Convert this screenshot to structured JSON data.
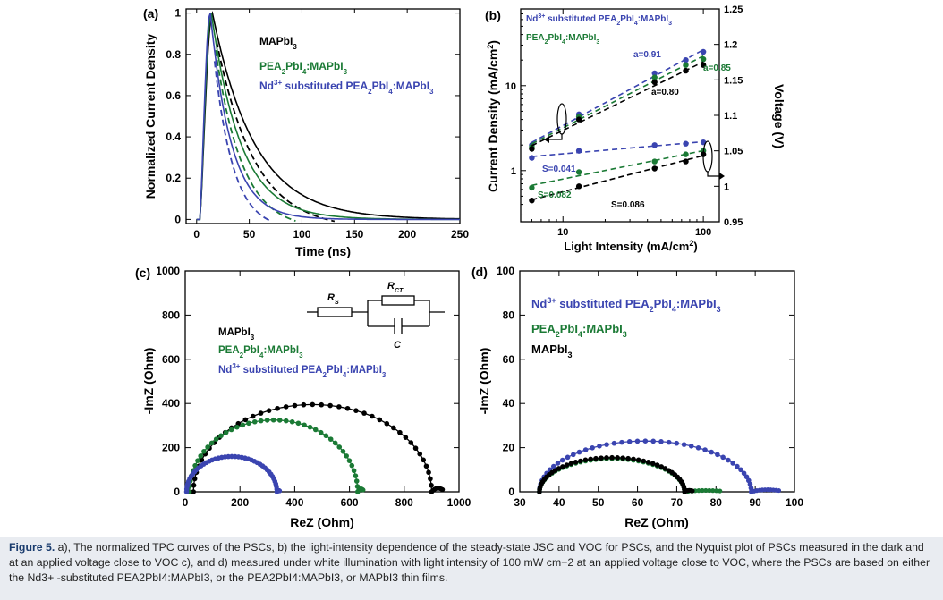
{
  "chart_data": [
    {
      "panel": "(a)",
      "type": "line",
      "xlabel": "Time (ns)",
      "ylabel": "Normalized Current Density",
      "xlim": [
        -10,
        250
      ],
      "ylim": [
        -0.02,
        1.02
      ],
      "xticks": [
        "0",
        "50",
        "100",
        "150",
        "200",
        "250"
      ],
      "yticks": [
        "0",
        "0.2",
        "0.4",
        "0.6",
        "0.8",
        "1"
      ],
      "series": [
        {
          "name": "MAPbI3",
          "color": "#000000",
          "peak_x": 15,
          "tau": 40,
          "rise": 6
        },
        {
          "name": "PEA2PbI4:MAPbI3",
          "color": "#1b7a35",
          "peak_x": 14,
          "tau": 28,
          "rise": 6
        },
        {
          "name": "Nd3+ substituted PEA2PbI4:MAPbI3",
          "color": "#3a44b0",
          "peak_x": 13,
          "tau": 20,
          "rise": 6
        }
      ],
      "legend": [
        "MAPbI3",
        "PEA2PbI4:MAPbI3",
        "Nd3+ substituted PEA2PbI4:MAPbI3"
      ]
    },
    {
      "panel": "(b)",
      "type": "scatter",
      "xlabel": "Light Intensity (mA/cm2)",
      "ylabel": "Current Density (mA/cm2)",
      "y2label": "Voltage (V)",
      "xscale": "log",
      "yscale": "log",
      "xlim": [
        5,
        130
      ],
      "ylim": [
        0.25,
        80
      ],
      "y2lim": [
        0.95,
        1.25
      ],
      "xticks": [
        "10",
        "100"
      ],
      "yticks": [
        "1",
        "10"
      ],
      "y2ticks": [
        "0.95",
        "1",
        "1.05",
        "1.1",
        "1.15",
        "1.2",
        "1.25"
      ],
      "x": [
        6,
        13,
        45,
        75,
        100
      ],
      "jsc_series": [
        {
          "name": "Nd3+ substituted PEA2PbI4:MAPbI3",
          "color": "#3a44b0",
          "values": [
            2.0,
            4.6,
            14,
            20,
            25
          ]
        },
        {
          "name": "PEA2PbI4:MAPbI3",
          "color": "#1b7a35",
          "values": [
            1.9,
            4.3,
            12.5,
            17.5,
            20.5
          ]
        },
        {
          "name": "MAPbI3",
          "color": "#000000",
          "values": [
            1.8,
            4.0,
            11,
            15,
            17.5
          ]
        }
      ],
      "voc_series": [
        {
          "name": "Nd3+ substituted PEA2PbI4:MAPbI3",
          "color": "#3a44b0",
          "values": [
            1.04,
            1.05,
            1.058,
            1.06,
            1.062
          ]
        },
        {
          "name": "PEA2PbI4:MAPbI3",
          "color": "#1b7a35",
          "values": [
            0.998,
            1.02,
            1.035,
            1.045,
            1.05
          ]
        },
        {
          "name": "MAPbI3",
          "color": "#000000",
          "values": [
            0.98,
            1.0,
            1.025,
            1.035,
            1.045
          ]
        }
      ],
      "annotations": [
        {
          "text": "a=0.91",
          "color": "#3a44b0"
        },
        {
          "text": "a=0.85",
          "color": "#1b7a35"
        },
        {
          "text": "a=0.80",
          "color": "#000000"
        },
        {
          "text": "S=0.041",
          "color": "#3a44b0"
        },
        {
          "text": "S=0.082",
          "color": "#1b7a35"
        },
        {
          "text": "S=0.086",
          "color": "#000000"
        }
      ],
      "legend": [
        "Nd3+ substituted PEA2PbI4:MAPbI3",
        "PEA2PbI4:MAPbI3"
      ]
    },
    {
      "panel": "(c)",
      "type": "scatter",
      "xlabel": "ReZ (Ohm)",
      "ylabel": "-ImZ (Ohm)",
      "xlim": [
        0,
        1000
      ],
      "ylim": [
        0,
        1000
      ],
      "xticks": [
        "0",
        "200",
        "400",
        "600",
        "800",
        "1000"
      ],
      "yticks": [
        "0",
        "200",
        "400",
        "600",
        "800",
        "1000"
      ],
      "series": [
        {
          "name": "MAPbI3",
          "color": "#000000",
          "x0": 30,
          "x1": 900,
          "height": 395,
          "tail_x": 940
        },
        {
          "name": "PEA2PbI4:MAPbI3",
          "color": "#1b7a35",
          "x0": 15,
          "x1": 630,
          "height": 325,
          "tail_x": 650
        },
        {
          "name": "Nd3+ substituted PEA2PbI4:MAPbI3",
          "color": "#3a44b0",
          "x0": 5,
          "x1": 335,
          "height": 160,
          "tail_x": 345
        }
      ],
      "legend": [
        "MAPbI3",
        "PEA2PbI4:MAPbI3",
        "Nd3+ substituted PEA2PbI4:MAPbI3"
      ],
      "circuit": {
        "r_s": "R",
        "r_s_sub": "S",
        "r_ct": "R",
        "r_ct_sub": "CT",
        "c": "C"
      }
    },
    {
      "panel": "(d)",
      "type": "scatter",
      "xlabel": "ReZ (Ohm)",
      "ylabel": "-ImZ (Ohm)",
      "xlim": [
        30,
        100
      ],
      "ylim": [
        0,
        100
      ],
      "xticks": [
        "30",
        "40",
        "50",
        "60",
        "70",
        "80",
        "90",
        "100"
      ],
      "yticks": [
        "0",
        "20",
        "40",
        "60",
        "80",
        "100"
      ],
      "series": [
        {
          "name": "Nd3+ substituted PEA2PbI4:MAPbI3",
          "color": "#3a44b0",
          "x0": 35,
          "x1": 89,
          "height": 23,
          "tail_x": 96
        },
        {
          "name": "PEA2PbI4:MAPbI3",
          "color": "#1b7a35",
          "x0": 35,
          "x1": 72,
          "height": 15,
          "tail_x": 81
        },
        {
          "name": "MAPbI3",
          "color": "#000000",
          "x0": 35,
          "x1": 72,
          "height": 15.5,
          "tail_x": 74
        }
      ],
      "legend": [
        "Nd3+ substituted PEA2PbI4:MAPbI3",
        "PEA2PbI4:MAPbI3",
        "MAPbI3"
      ]
    }
  ],
  "caption": {
    "label": "Figure 5.",
    "text": "a), The normalized TPC curves of the PSCs, b) the light-intensity dependence of the steady-state JSC and VOC for PSCs, and the Nyquist plot of PSCs measured in the dark and at an applied voltage close to VOC c), and d) measured under white illumination with light intensity of 100 mW cm−2 at an applied voltage close to VOC, where the PSCs are based on either the Nd3+ -substituted PEA2PbI4:MAPbI3, or the PEA2PbI4:MAPbI3, or MAPbI3 thin films."
  }
}
